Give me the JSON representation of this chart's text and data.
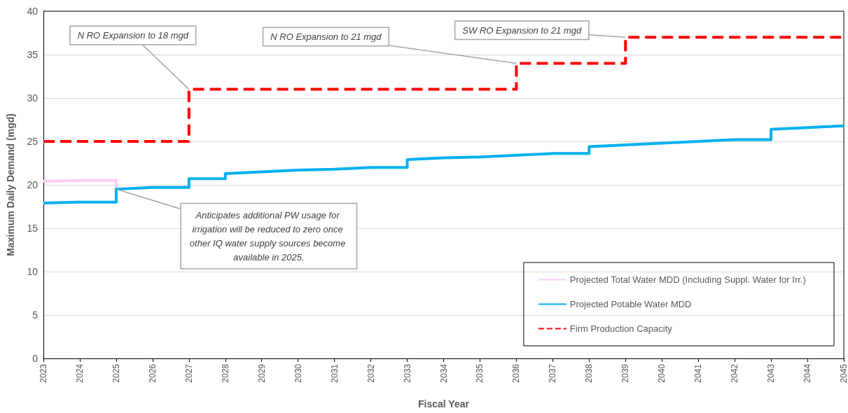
{
  "chart_data": {
    "type": "line",
    "xlabel": "Fiscal Year",
    "ylabel": "Maximum Daily Demand (mgd)",
    "xlim": [
      2023,
      2045
    ],
    "xticks": [
      2023,
      2024,
      2025,
      2026,
      2027,
      2028,
      2029,
      2030,
      2031,
      2032,
      2033,
      2034,
      2035,
      2036,
      2037,
      2038,
      2039,
      2040,
      2041,
      2042,
      2043,
      2044,
      2045
    ],
    "ylim": [
      0,
      40
    ],
    "yticks": [
      0,
      5,
      10,
      15,
      20,
      25,
      30,
      35,
      40
    ],
    "grid": "y",
    "legend": "bottom right",
    "marker": "none",
    "series": [
      {
        "name": "Projected Total Water MDD (Including Suppl. Water for Irr.)",
        "color": "#ffccf5",
        "line_style": "solid",
        "x": [
          2023,
          2024,
          2025,
          2025
        ],
        "values": [
          20.4,
          20.5,
          20.5,
          19.5
        ]
      },
      {
        "name": "Projected Potable Water MDD",
        "color": "#00b0f0",
        "line_style": "solid",
        "x": [
          2023,
          2024,
          2025,
          2025,
          2026,
          2027,
          2027,
          2028,
          2028,
          2029,
          2030,
          2031,
          2032,
          2033,
          2033,
          2034,
          2035,
          2036,
          2037,
          2038,
          2038,
          2039,
          2040,
          2041,
          2042,
          2043,
          2043,
          2044,
          2045
        ],
        "values": [
          17.9,
          18.0,
          18.0,
          19.5,
          19.7,
          19.7,
          20.7,
          20.7,
          21.3,
          21.5,
          21.7,
          21.8,
          22.0,
          22.0,
          22.9,
          23.1,
          23.2,
          23.4,
          23.6,
          23.6,
          24.4,
          24.6,
          24.8,
          25.0,
          25.2,
          25.2,
          26.4,
          26.6,
          26.8
        ]
      },
      {
        "name": "Firm Production Capacity",
        "color": "#ff0000",
        "line_style": "dashed",
        "x": [
          2023,
          2027,
          2027,
          2036,
          2036,
          2039,
          2039,
          2045
        ],
        "values": [
          25,
          25,
          31,
          31,
          34,
          34,
          37,
          37
        ]
      }
    ],
    "annotations": [
      {
        "text": "N RO Expansion to 18 mgd",
        "x": 2027,
        "y": 31
      },
      {
        "text": "N RO Expansion to 21 mgd",
        "x": 2036,
        "y": 34
      },
      {
        "text": "SW RO Expansion to 21 mgd",
        "x": 2039,
        "y": 37
      },
      {
        "text": "Anticipates additional PW usage for irrigation will be reduced to zero once other IQ water supply sources become available in 2025.",
        "x": 2025,
        "y": 19.5
      }
    ]
  }
}
